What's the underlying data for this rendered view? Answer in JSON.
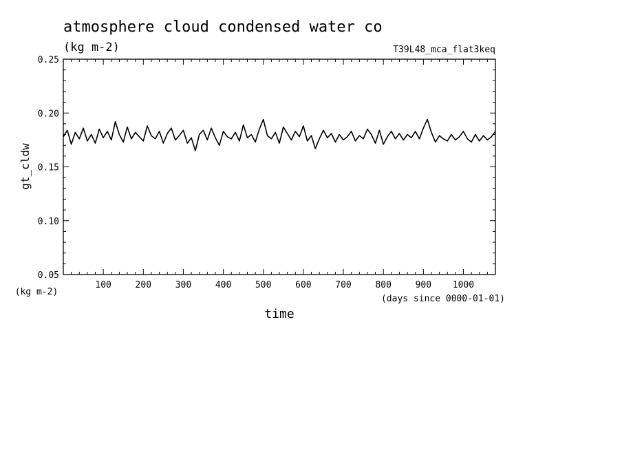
{
  "chart_data": {
    "type": "line",
    "title": "atmosphere cloud condensed water co",
    "units": "(kg m-2)",
    "run_label": "T39L48_mca_flat3keq",
    "xlabel": "time",
    "xunits": "(days since 0000-01-01)",
    "ylabel": "gt_cldw",
    "yunits": "(kg m-2)",
    "xlim": [
      0,
      1080
    ],
    "ylim": [
      0.05,
      0.25
    ],
    "x_ticks": [
      100,
      200,
      300,
      400,
      500,
      600,
      700,
      800,
      900,
      1000
    ],
    "x_tick_labels": [
      "100",
      "200",
      "300",
      "400",
      "500",
      "600",
      "700",
      "800",
      "900",
      "1000"
    ],
    "y_ticks": [
      0.05,
      0.1,
      0.15,
      0.2,
      0.25
    ],
    "y_tick_labels": [
      "0.05",
      "0.10",
      "0.15",
      "0.20",
      "0.25"
    ],
    "grid": false,
    "series": [
      {
        "x": [
          0,
          10,
          20,
          30,
          40,
          50,
          60,
          70,
          80,
          90,
          100,
          110,
          120,
          130,
          140,
          150,
          160,
          170,
          180,
          190,
          200,
          210,
          220,
          230,
          240,
          250,
          260,
          270,
          280,
          290,
          300,
          310,
          320,
          330,
          340,
          350,
          360,
          370,
          380,
          390,
          400,
          410,
          420,
          430,
          440,
          450,
          460,
          470,
          480,
          490,
          500,
          510,
          520,
          530,
          540,
          550,
          560,
          570,
          580,
          590,
          600,
          610,
          620,
          630,
          640,
          650,
          660,
          670,
          680,
          690,
          700,
          710,
          720,
          730,
          740,
          750,
          760,
          770,
          780,
          790,
          800,
          810,
          820,
          830,
          840,
          850,
          860,
          870,
          880,
          890,
          900,
          910,
          920,
          930,
          940,
          950,
          960,
          970,
          980,
          990,
          1000,
          1010,
          1020,
          1030,
          1040,
          1050,
          1060,
          1070,
          1080
        ],
        "values": [
          0.178,
          0.184,
          0.171,
          0.182,
          0.176,
          0.186,
          0.174,
          0.18,
          0.172,
          0.185,
          0.177,
          0.183,
          0.175,
          0.192,
          0.18,
          0.173,
          0.187,
          0.176,
          0.182,
          0.178,
          0.174,
          0.188,
          0.179,
          0.176,
          0.183,
          0.172,
          0.181,
          0.186,
          0.175,
          0.179,
          0.184,
          0.172,
          0.177,
          0.165,
          0.18,
          0.184,
          0.175,
          0.186,
          0.177,
          0.17,
          0.183,
          0.178,
          0.176,
          0.182,
          0.174,
          0.189,
          0.177,
          0.18,
          0.173,
          0.185,
          0.194,
          0.179,
          0.176,
          0.182,
          0.172,
          0.187,
          0.181,
          0.175,
          0.183,
          0.178,
          0.188,
          0.174,
          0.179,
          0.167,
          0.176,
          0.184,
          0.177,
          0.181,
          0.173,
          0.18,
          0.175,
          0.178,
          0.183,
          0.174,
          0.179,
          0.176,
          0.185,
          0.18,
          0.172,
          0.184,
          0.171,
          0.178,
          0.183,
          0.176,
          0.181,
          0.175,
          0.18,
          0.177,
          0.183,
          0.176,
          0.186,
          0.194,
          0.182,
          0.173,
          0.179,
          0.176,
          0.174,
          0.18,
          0.175,
          0.178,
          0.183,
          0.176,
          0.173,
          0.18,
          0.174,
          0.179,
          0.175,
          0.178,
          0.183
        ]
      }
    ]
  }
}
